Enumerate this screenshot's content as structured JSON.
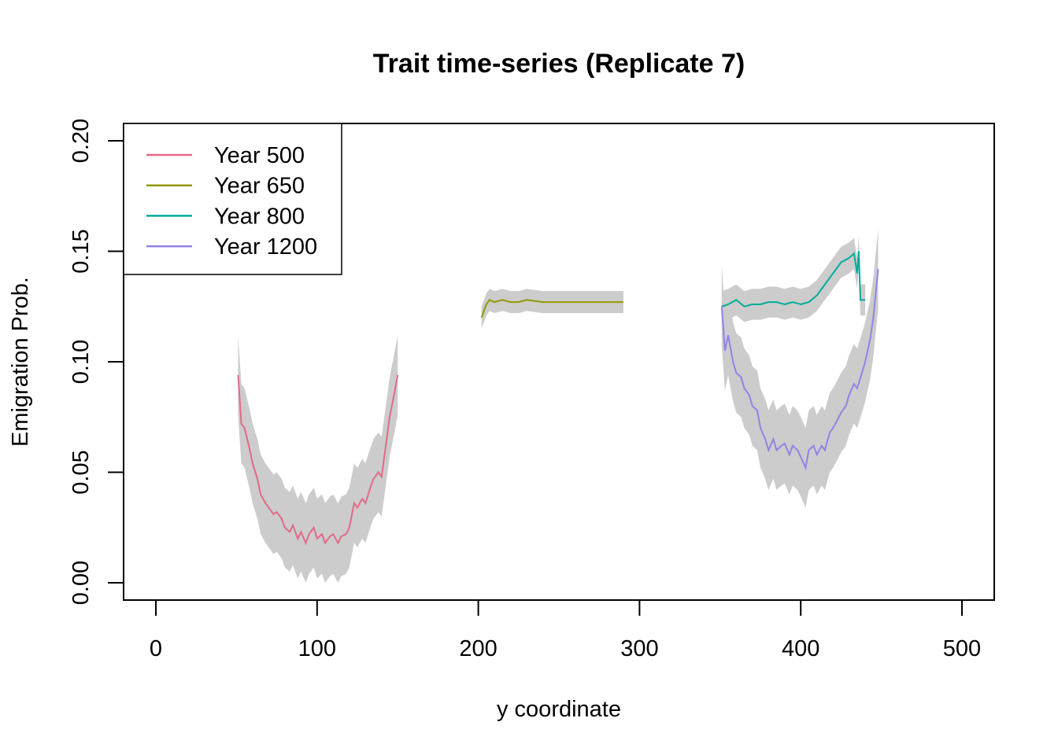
{
  "chart_data": {
    "type": "line",
    "title": "Trait time-series (Replicate 7)",
    "xlabel": "y coordinate",
    "ylabel": "Emigration Prob.",
    "xlim": [
      -10,
      530
    ],
    "ylim": [
      -0.008,
      0.208
    ],
    "xticks": [
      0,
      100,
      200,
      300,
      400,
      500
    ],
    "xtick_labels": [
      "0",
      "100",
      "200",
      "300",
      "400",
      "500"
    ],
    "yticks": [
      0.0,
      0.05,
      0.1,
      0.15,
      0.2
    ],
    "ytick_labels": [
      "0.00",
      "0.05",
      "0.10",
      "0.15",
      "0.20"
    ],
    "grid": false,
    "legend_position": "top-left",
    "band_color": "#CCCCCC",
    "series": [
      {
        "name": "Year 500",
        "color": "#E16A86",
        "band_halfwidth": 0.018,
        "x": [
          51,
          53,
          55,
          58,
          60,
          63,
          65,
          68,
          70,
          73,
          75,
          78,
          80,
          83,
          85,
          88,
          90,
          93,
          95,
          98,
          100,
          103,
          105,
          108,
          110,
          113,
          115,
          118,
          120,
          123,
          125,
          128,
          130,
          133,
          135,
          138,
          140,
          143,
          145,
          148,
          150
        ],
        "y": [
          0.094,
          0.072,
          0.07,
          0.061,
          0.054,
          0.047,
          0.04,
          0.036,
          0.034,
          0.031,
          0.032,
          0.029,
          0.025,
          0.023,
          0.026,
          0.02,
          0.023,
          0.018,
          0.022,
          0.025,
          0.02,
          0.022,
          0.018,
          0.021,
          0.022,
          0.018,
          0.021,
          0.022,
          0.025,
          0.036,
          0.034,
          0.038,
          0.036,
          0.043,
          0.047,
          0.05,
          0.048,
          0.064,
          0.075,
          0.086,
          0.094
        ]
      },
      {
        "name": "Year 650",
        "color": "#909800",
        "band_halfwidth": 0.005,
        "x": [
          202,
          203,
          205,
          207,
          210,
          215,
          220,
          225,
          230,
          240,
          250,
          260,
          270,
          280,
          290
        ],
        "y": [
          0.12,
          0.122,
          0.126,
          0.128,
          0.127,
          0.128,
          0.127,
          0.127,
          0.128,
          0.127,
          0.127,
          0.127,
          0.127,
          0.127,
          0.127
        ]
      },
      {
        "name": "Year 800",
        "color": "#00AD9A",
        "band_halfwidth": 0.007,
        "x": [
          351,
          355,
          360,
          365,
          370,
          375,
          380,
          385,
          390,
          395,
          400,
          405,
          410,
          415,
          420,
          425,
          430,
          433,
          435,
          436,
          437,
          440
        ],
        "y": [
          0.125,
          0.126,
          0.128,
          0.125,
          0.126,
          0.126,
          0.127,
          0.127,
          0.126,
          0.127,
          0.126,
          0.127,
          0.13,
          0.135,
          0.14,
          0.145,
          0.147,
          0.149,
          0.14,
          0.15,
          0.128,
          0.128
        ]
      },
      {
        "name": "Year 1200",
        "color": "#9183E6",
        "band_halfwidth": 0.018,
        "x": [
          351,
          353,
          355,
          358,
          360,
          363,
          365,
          368,
          370,
          373,
          375,
          378,
          380,
          383,
          385,
          388,
          390,
          393,
          395,
          398,
          400,
          403,
          405,
          408,
          410,
          413,
          415,
          418,
          420,
          423,
          425,
          428,
          430,
          433,
          435,
          438,
          440,
          443,
          445,
          448
        ],
        "y": [
          0.125,
          0.105,
          0.112,
          0.1,
          0.095,
          0.093,
          0.088,
          0.085,
          0.08,
          0.078,
          0.07,
          0.065,
          0.06,
          0.065,
          0.06,
          0.062,
          0.063,
          0.058,
          0.062,
          0.06,
          0.057,
          0.052,
          0.06,
          0.062,
          0.058,
          0.062,
          0.06,
          0.068,
          0.07,
          0.074,
          0.077,
          0.08,
          0.085,
          0.09,
          0.088,
          0.095,
          0.1,
          0.11,
          0.12,
          0.142
        ]
      }
    ]
  }
}
